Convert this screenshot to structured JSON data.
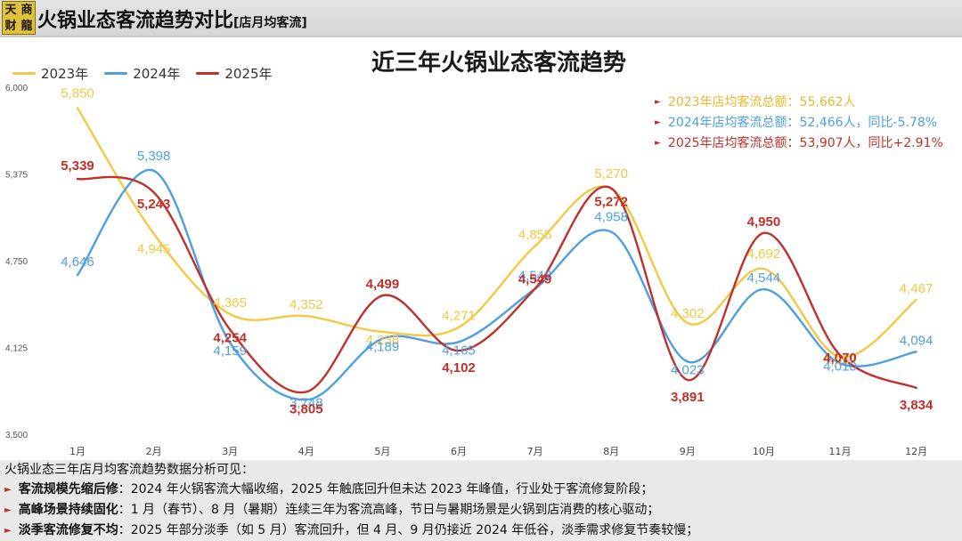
{
  "header": {
    "logo_chars": [
      "天",
      "商",
      "财",
      "龍"
    ],
    "title": "火锅业态客流趋势对比",
    "subtitle": "[店月均客流]"
  },
  "colors": {
    "s2023": "#f3c842",
    "s2024": "#4d9fe0",
    "s2025": "#c0302b",
    "summary2023": "#e8b82e",
    "bullet": "#c0302b"
  },
  "summary": [
    {
      "text": "2023年店均客流总额：55,662人",
      "color": "#e8b82e"
    },
    {
      "text": "2024年店均客流总额：52,466人，同比-5.78%",
      "color": "#4d9fe0"
    },
    {
      "text": "2025年店均客流总额：53,907人，同比+2.91%",
      "color": "#c0302b"
    }
  ],
  "notes": {
    "intro": "火锅业态三年店月均客流趋势数据分析可见：",
    "items": [
      {
        "head": "客流规模先缩后修",
        "body": "：2024 年火锅客流大幅收缩，2025 年触底回升但未达 2023 年峰值，行业处于客流修复阶段；"
      },
      {
        "head": "高峰场景持续固化",
        "body": "：1 月（春节）、8 月（暑期）连续三年为客流高峰，节日与暑期场景是火锅到店消费的核心驱动；"
      },
      {
        "head": "淡季客流修复不均",
        "body": "：2025 年部分淡季（如 5 月）客流回升，但 4 月、9 月仍接近 2024 年低谷，淡季需求修复节奏较慢；"
      }
    ]
  },
  "chart_data": {
    "type": "line",
    "title": "近三年火锅业态客流趋势",
    "xlabel": "",
    "ylabel": "",
    "categories": [
      "1月",
      "2月",
      "3月",
      "4月",
      "5月",
      "6月",
      "7月",
      "8月",
      "9月",
      "10月",
      "11月",
      "12月"
    ],
    "ylim": [
      3500,
      6000
    ],
    "yticks": [
      3500,
      4125,
      4750,
      5375,
      6000
    ],
    "ytick_labels": [
      "3,500",
      "4,125",
      "4,750",
      "5,375",
      "6,000"
    ],
    "grid": false,
    "legend": "top-left",
    "series": [
      {
        "name": "2023年",
        "color": "#f3c842",
        "values": [
          5850,
          4945,
          4365,
          4352,
          4238,
          4271,
          4855,
          5270,
          4302,
          4692,
          4057,
          4467
        ],
        "labels": [
          "5,850",
          "4,945",
          "4,365",
          "4,352",
          "4,238",
          "4,271",
          "4,855",
          "5,270",
          "4,302",
          "4,692",
          "4,057",
          "4,467"
        ]
      },
      {
        "name": "2024年",
        "color": "#4d9fe0",
        "values": [
          4646,
          5398,
          4159,
          3748,
          4189,
          4165,
          4548,
          4958,
          4023,
          4544,
          4010,
          4094
        ],
        "labels": [
          "4,646",
          "5,398",
          "4,159",
          "3,748",
          "4,189",
          "4,165",
          "4,548",
          "4,958",
          "4,023",
          "4,544",
          "4,010",
          "4,094"
        ]
      },
      {
        "name": "2025年",
        "color": "#c0302b",
        "values": [
          5339,
          5243,
          4254,
          3805,
          4499,
          4102,
          4549,
          5272,
          3891,
          4950,
          4070,
          3834
        ],
        "labels": [
          "5,339",
          "5,243",
          "4,254",
          "3,805",
          "4,499",
          "4,102",
          "4,549",
          "5,272",
          "3,891",
          "4,950",
          "4,070",
          "3,834"
        ]
      }
    ]
  }
}
